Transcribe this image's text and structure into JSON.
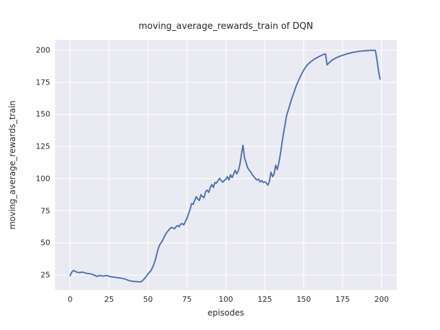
{
  "figure": {
    "background": "#ffffff"
  },
  "chart_data": {
    "type": "line",
    "title": "moving_average_rewards_train of DQN",
    "xlabel": "episodes",
    "ylabel": "moving_average_rewards_train",
    "xticks": [
      0,
      25,
      50,
      75,
      100,
      125,
      150,
      175,
      200
    ],
    "yticks": [
      25,
      50,
      75,
      100,
      125,
      150,
      175,
      200
    ],
    "xlim": [
      -9.7,
      209.7
    ],
    "ylim": [
      13.2,
      208.0
    ],
    "grid": true,
    "legend": "none",
    "plot_background": "#eaeaf2",
    "grid_color": "#ffffff",
    "line_color": "#4c72b0",
    "text_color": "#262626",
    "series": [
      {
        "name": "moving_average_rewards_train",
        "x_start": 0,
        "x_step": 1,
        "values": [
          24.5,
          27.0,
          28.5,
          28.0,
          27.4,
          27.0,
          26.8,
          27.1,
          27.2,
          26.8,
          26.4,
          26.2,
          26.0,
          25.9,
          25.6,
          25.1,
          24.7,
          23.9,
          24.2,
          24.7,
          24.4,
          24.1,
          24.3,
          24.6,
          24.4,
          24.0,
          23.7,
          23.5,
          23.3,
          23.2,
          23.0,
          22.8,
          22.6,
          22.4,
          22.2,
          22.0,
          21.5,
          21.0,
          20.6,
          20.3,
          20.1,
          20.0,
          19.9,
          19.8,
          19.7,
          19.6,
          20.0,
          21.2,
          22.5,
          24.0,
          25.8,
          27.2,
          28.5,
          31.0,
          34.0,
          38.0,
          43.0,
          47.0,
          49.5,
          51.0,
          53.5,
          56.0,
          58.0,
          59.5,
          61.0,
          62.0,
          61.5,
          61.0,
          62.5,
          63.5,
          62.5,
          64.5,
          65.0,
          64.0,
          66.5,
          69.0,
          72.5,
          76.0,
          80.5,
          80.0,
          83.0,
          86.0,
          84.0,
          83.0,
          87.5,
          86.0,
          85.2,
          90.0,
          91.0,
          89.2,
          93.0,
          95.4,
          93.1,
          97.0,
          96.5,
          98.5,
          100.2,
          98.4,
          97.2,
          98.5,
          99.5,
          101.5,
          99.0,
          103.0,
          100.8,
          103.5,
          106.5,
          103.7,
          106.0,
          111.0,
          119.0,
          126.0,
          116.0,
          112.5,
          108.5,
          106.5,
          105.2,
          103.0,
          101.5,
          100.0,
          99.0,
          99.5,
          97.5,
          98.5,
          97.0,
          97.5,
          96.5,
          94.9,
          98.0,
          105.0,
          101.5,
          103.5,
          110.5,
          107.0,
          112.0,
          119.0,
          127.0,
          135.0,
          142.0,
          149.0,
          153.0,
          157.0,
          161.0,
          164.5,
          168.0,
          171.5,
          174.5,
          177.3,
          179.8,
          182.2,
          184.5,
          186.3,
          188.0,
          189.3,
          190.4,
          191.4,
          192.3,
          193.1,
          193.8,
          194.5,
          195.1,
          195.7,
          196.2,
          196.7,
          197.1,
          188.5,
          189.8,
          191.0,
          192.0,
          192.8,
          193.5,
          194.1,
          194.7,
          195.2,
          195.6,
          196.0,
          196.4,
          196.8,
          197.2,
          197.5,
          197.8,
          198.1,
          198.4,
          198.6,
          198.8,
          199.0,
          199.2,
          199.3,
          199.4,
          199.5,
          199.6,
          199.7,
          199.7,
          199.8,
          199.8,
          199.8,
          199.8,
          193.0,
          184.0,
          177.5
        ]
      }
    ]
  }
}
